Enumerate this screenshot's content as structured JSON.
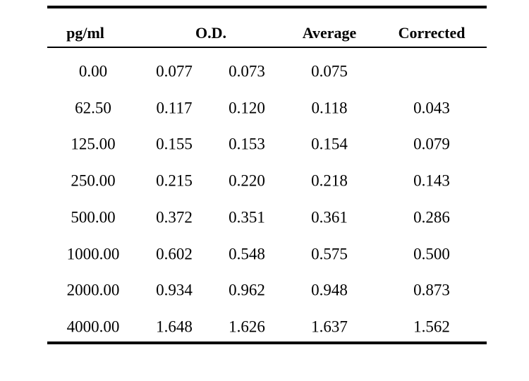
{
  "headers": {
    "concentration": "pg/ml",
    "od": "O.D.",
    "average": "Average",
    "corrected": "Corrected"
  },
  "rows": [
    {
      "concentration": "0.00",
      "od1": "0.077",
      "od2": "0.073",
      "average": "0.075",
      "corrected": ""
    },
    {
      "concentration": "62.50",
      "od1": "0.117",
      "od2": "0.120",
      "average": "0.118",
      "corrected": "0.043"
    },
    {
      "concentration": "125.00",
      "od1": "0.155",
      "od2": "0.153",
      "average": "0.154",
      "corrected": "0.079"
    },
    {
      "concentration": "250.00",
      "od1": "0.215",
      "od2": "0.220",
      "average": "0.218",
      "corrected": "0.143"
    },
    {
      "concentration": "500.00",
      "od1": "0.372",
      "od2": "0.351",
      "average": "0.361",
      "corrected": "0.286"
    },
    {
      "concentration": "1000.00",
      "od1": "0.602",
      "od2": "0.548",
      "average": "0.575",
      "corrected": "0.500"
    },
    {
      "concentration": "2000.00",
      "od1": "0.934",
      "od2": "0.962",
      "average": "0.948",
      "corrected": "0.873"
    },
    {
      "concentration": "4000.00",
      "od1": "1.648",
      "od2": "1.626",
      "average": "1.637",
      "corrected": "1.562"
    }
  ]
}
